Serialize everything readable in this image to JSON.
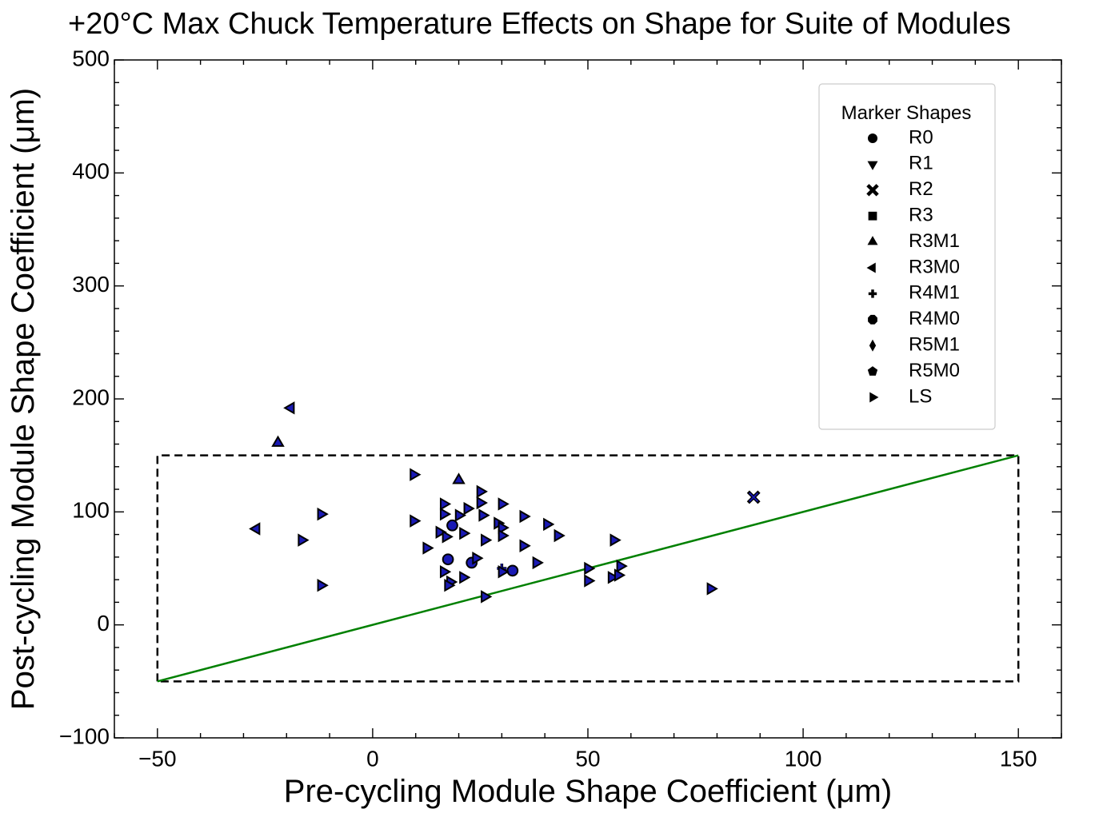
{
  "chart_data": {
    "type": "scatter",
    "title": "+20°C Max Chuck Temperature Effects on Shape for Suite of Modules",
    "xlabel": "Pre-cycling Module Shape Coefficient (μm)",
    "ylabel": "Post-cycling Module Shape Coefficient (μm)",
    "xlim": [
      -60,
      160
    ],
    "ylim": [
      -100,
      500
    ],
    "x_ticks": [
      -50,
      0,
      50,
      100,
      150
    ],
    "x_tick_labels": [
      "−50",
      "0",
      "50",
      "100",
      "150"
    ],
    "y_ticks": [
      -100,
      0,
      100,
      200,
      300,
      400,
      500
    ],
    "y_tick_labels": [
      "−100",
      "0",
      "100",
      "200",
      "300",
      "400",
      "500"
    ],
    "x_minor_step": 10,
    "y_minor_step": 20,
    "marker_color": "#1a1ab4",
    "marker_edge_color": "#000000",
    "reference_line": {
      "color": "#008000",
      "x": [
        -50,
        150
      ],
      "y": [
        -50,
        150
      ]
    },
    "acceptance_box": {
      "color": "#000000",
      "x_range": [
        -50,
        150
      ],
      "y_range": [
        -50,
        150
      ]
    },
    "legend": {
      "title": "Marker Shapes",
      "position": "top-right",
      "entries": [
        {
          "label": "R0",
          "marker": "circle"
        },
        {
          "label": "R1",
          "marker": "triangle-down"
        },
        {
          "label": "R2",
          "marker": "x"
        },
        {
          "label": "R3",
          "marker": "square"
        },
        {
          "label": "R3M1",
          "marker": "triangle-up"
        },
        {
          "label": "R3M0",
          "marker": "triangle-left"
        },
        {
          "label": "R4M1",
          "marker": "plus"
        },
        {
          "label": "R4M0",
          "marker": "octagon"
        },
        {
          "label": "R5M1",
          "marker": "diamond"
        },
        {
          "label": "R5M0",
          "marker": "pentagon"
        },
        {
          "label": "LS",
          "marker": "triangle-right"
        }
      ]
    },
    "series": [
      {
        "name": "R0",
        "marker": "circle",
        "points": [
          [
            18.5,
            88
          ],
          [
            17.5,
            58
          ],
          [
            23,
            55
          ],
          [
            32.5,
            48
          ]
        ]
      },
      {
        "name": "R2",
        "marker": "x",
        "points": [
          [
            88.5,
            113
          ]
        ]
      },
      {
        "name": "R3M1",
        "marker": "triangle-up",
        "points": [
          [
            -22,
            161
          ],
          [
            20,
            128
          ]
        ]
      },
      {
        "name": "R3M0",
        "marker": "triangle-left",
        "points": [
          [
            -19,
            192
          ],
          [
            -27,
            85
          ]
        ]
      },
      {
        "name": "R4M1",
        "marker": "plus",
        "points": [
          [
            30,
            50
          ]
        ]
      },
      {
        "name": "LS",
        "marker": "triangle-right",
        "points": [
          [
            9.5,
            133
          ],
          [
            25,
            118
          ],
          [
            25,
            108
          ],
          [
            30,
            107
          ],
          [
            16.5,
            107
          ],
          [
            22,
            103
          ],
          [
            20,
            97
          ],
          [
            16.5,
            98
          ],
          [
            25.5,
            97
          ],
          [
            35,
            96
          ],
          [
            9.5,
            92
          ],
          [
            29,
            90
          ],
          [
            40.5,
            89
          ],
          [
            30,
            86
          ],
          [
            15.5,
            82
          ],
          [
            21,
            81
          ],
          [
            30,
            79
          ],
          [
            17,
            78
          ],
          [
            43,
            79
          ],
          [
            26,
            75
          ],
          [
            35,
            70
          ],
          [
            12.5,
            68
          ],
          [
            24,
            59
          ],
          [
            38,
            55
          ],
          [
            16.5,
            47
          ],
          [
            30,
            47
          ],
          [
            21,
            42
          ],
          [
            18,
            38
          ],
          [
            17.5,
            35
          ],
          [
            50,
            50
          ],
          [
            57.5,
            52
          ],
          [
            55.5,
            42
          ],
          [
            57,
            44
          ],
          [
            50,
            39
          ],
          [
            56,
            75
          ],
          [
            26,
            25
          ],
          [
            -12,
            98
          ],
          [
            -16.5,
            75
          ],
          [
            -12,
            35
          ],
          [
            78.5,
            32
          ]
        ]
      }
    ]
  }
}
